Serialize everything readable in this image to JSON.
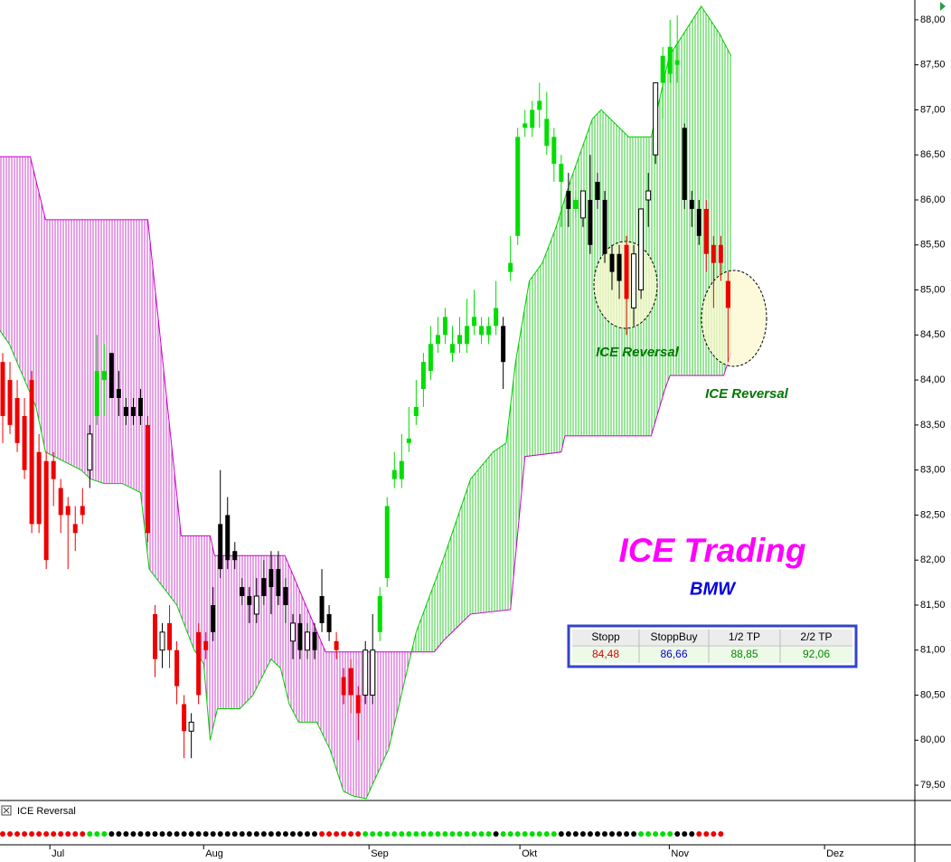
{
  "chart_data": {
    "type": "candlestick",
    "title": "ICE Trading",
    "subtitle": "BMW",
    "annotations": [
      "ICE Reversal",
      "ICE Reversal"
    ],
    "ylim": [
      79.33,
      88.22
    ],
    "yticks": [
      {
        "value": 79.5,
        "label": "79,50"
      },
      {
        "value": 80,
        "label": "80,00"
      },
      {
        "value": 80.5,
        "label": "80,50"
      },
      {
        "value": 81,
        "label": "81,00"
      },
      {
        "value": 81.5,
        "label": "81,50"
      },
      {
        "value": 82,
        "label": "82,00"
      },
      {
        "value": 82.5,
        "label": "82,50"
      },
      {
        "value": 83,
        "label": "83,00"
      },
      {
        "value": 83.5,
        "label": "83,50"
      },
      {
        "value": 84,
        "label": "84,00"
      },
      {
        "value": 84.5,
        "label": "84,50"
      },
      {
        "value": 85,
        "label": "85,00"
      },
      {
        "value": 85.5,
        "label": "85,50"
      },
      {
        "value": 86,
        "label": "86,00"
      },
      {
        "value": 86.5,
        "label": "86,50"
      },
      {
        "value": 87,
        "label": "87,00"
      },
      {
        "value": 87.5,
        "label": "87,50"
      },
      {
        "value": 88,
        "label": "88,00"
      }
    ],
    "xlim": [
      -0.375,
      125.5
    ],
    "xticks": [
      {
        "value": 6.5,
        "label": "Jul"
      },
      {
        "value": 27.7,
        "label": "Aug"
      },
      {
        "value": 50.5,
        "label": "Sep"
      },
      {
        "value": 71.3,
        "label": "Okt"
      },
      {
        "value": 91.9,
        "label": "Nov"
      },
      {
        "value": 113.3,
        "label": "Dez"
      }
    ],
    "palette": {
      "g": "#00dd00",
      "r": "#ee0000",
      "k": "#000000",
      "w": "#ffffff"
    },
    "candle_colors": "rrrrrrrrrrrrwggkkkkkrrwrrrwrrkkkkkkwkkkkwkwkkkrrrrwwgggggggggggggggggkggggggggkgwkkkkkrwwwwgggkkkrrrr",
    "open": [
      84.2,
      84.0,
      83.8,
      83.6,
      84.0,
      83.2,
      83.1,
      83.1,
      82.8,
      82.6,
      82.4,
      82.6,
      83.0,
      83.6,
      84.0,
      84.3,
      83.9,
      83.7,
      83.7,
      83.8,
      83.5,
      81.4,
      81.0,
      81.3,
      81.0,
      80.4,
      80.1,
      81.2,
      81.1,
      81.5,
      82.4,
      82.5,
      82.1,
      81.7,
      81.6,
      81.4,
      81.8,
      81.9,
      81.9,
      81.7,
      81.1,
      81.3,
      81.0,
      81.2,
      81.6,
      81.4,
      81.1,
      80.7,
      80.8,
      80.5,
      80.5,
      80.5,
      81.2,
      81.8,
      82.9,
      82.9,
      83.3,
      83.6,
      83.9,
      84.1,
      84.4,
      84.5,
      84.4,
      84.4,
      84.4,
      84.6,
      84.5,
      84.5,
      84.6,
      84.6,
      85.2,
      85.6,
      86.8,
      86.8,
      87.0,
      86.6,
      86.4,
      86.2,
      86.1,
      86.0,
      85.8,
      86.0,
      86.2,
      86.0,
      85.4,
      85.4,
      85.5,
      84.8,
      85.0,
      86.0,
      86.5,
      87.3,
      87.4,
      87.5,
      86.8,
      86.0,
      85.9,
      85.9,
      85.5,
      85.5,
      85.1
    ],
    "high": [
      84.3,
      84.2,
      84.0,
      83.8,
      84.1,
      83.4,
      83.2,
      83.2,
      82.9,
      82.7,
      82.6,
      82.8,
      83.5,
      84.5,
      84.4,
      84.3,
      84.1,
      83.8,
      83.8,
      83.9,
      83.6,
      81.5,
      81.3,
      81.5,
      81.1,
      80.5,
      80.3,
      81.3,
      81.2,
      81.7,
      83.0,
      82.7,
      82.2,
      81.8,
      81.7,
      81.8,
      82.0,
      82.1,
      82.1,
      81.8,
      81.4,
      81.4,
      81.3,
      81.3,
      81.9,
      81.5,
      81.2,
      80.8,
      80.9,
      80.6,
      81.1,
      81.4,
      81.7,
      82.7,
      83.2,
      83.4,
      83.7,
      84.0,
      84.3,
      84.6,
      84.7,
      84.8,
      84.6,
      84.7,
      84.9,
      85.0,
      84.7,
      84.7,
      85.1,
      84.7,
      85.6,
      86.8,
      87.0,
      87.1,
      87.3,
      87.2,
      86.8,
      86.5,
      86.3,
      86.1,
      86.1,
      86.5,
      86.3,
      86.1,
      85.5,
      85.5,
      85.6,
      85.5,
      85.9,
      86.3,
      87.3,
      87.7,
      88.0,
      88.05,
      86.85,
      86.1,
      86.0,
      86.0,
      85.6,
      85.6,
      85.2
    ],
    "low": [
      83.3,
      83.4,
      83.2,
      82.9,
      82.3,
      82.3,
      81.9,
      82.6,
      82.3,
      81.9,
      82.1,
      82.4,
      82.8,
      83.5,
      83.6,
      83.8,
      83.6,
      83.5,
      83.5,
      83.5,
      82.2,
      80.7,
      80.8,
      80.8,
      80.4,
      79.8,
      79.8,
      80.4,
      80.9,
      81.1,
      81.8,
      81.9,
      81.9,
      81.5,
      81.3,
      81.3,
      81.5,
      81.4,
      81.5,
      81.3,
      80.9,
      80.9,
      80.9,
      80.9,
      81.2,
      81.1,
      80.9,
      80.4,
      80.3,
      80.0,
      80.4,
      80.4,
      81.1,
      81.7,
      82.8,
      82.8,
      83.2,
      83.5,
      83.7,
      84.0,
      84.3,
      84.4,
      84.2,
      84.3,
      84.3,
      84.5,
      84.4,
      84.4,
      84.5,
      83.9,
      85.1,
      85.5,
      86.7,
      86.7,
      86.8,
      86.5,
      86.2,
      85.7,
      85.7,
      85.8,
      85.7,
      85.4,
      85.9,
      85.3,
      85.0,
      84.9,
      84.5,
      84.6,
      84.9,
      85.7,
      86.4,
      86.9,
      87.3,
      87.3,
      85.9,
      85.7,
      85.5,
      85.2,
      84.8,
      85.1,
      84.2
    ],
    "close": [
      83.6,
      83.5,
      83.3,
      83.0,
      82.4,
      82.4,
      82.0,
      82.9,
      82.5,
      82.5,
      82.3,
      82.5,
      83.4,
      84.1,
      84.1,
      83.8,
      83.8,
      83.6,
      83.6,
      83.6,
      82.3,
      80.9,
      81.2,
      81.0,
      80.6,
      80.1,
      80.2,
      80.5,
      81.0,
      81.2,
      81.9,
      82.0,
      82.0,
      81.6,
      81.5,
      81.6,
      81.6,
      81.7,
      81.6,
      81.5,
      81.3,
      81.0,
      81.2,
      81.0,
      81.3,
      81.2,
      81.0,
      80.5,
      80.5,
      80.3,
      81.0,
      81.0,
      81.6,
      82.6,
      83.0,
      83.1,
      83.35,
      83.7,
      84.2,
      84.4,
      84.5,
      84.7,
      84.3,
      84.5,
      84.6,
      84.7,
      84.6,
      84.6,
      84.8,
      84.2,
      85.3,
      86.7,
      86.85,
      87.0,
      87.1,
      86.9,
      86.7,
      86.4,
      85.9,
      85.9,
      86.1,
      85.5,
      86.0,
      85.4,
      85.2,
      85.1,
      84.9,
      85.4,
      85.9,
      86.1,
      87.3,
      87.6,
      87.7,
      87.55,
      86.0,
      85.9,
      85.6,
      85.4,
      85.3,
      85.3,
      84.8
    ],
    "cloud": {
      "span_a": {
        "color": "#00cc00",
        "hatch": "#33cc33",
        "x": [
          -0.4,
          0.9,
          4.6,
          5.9,
          10.8,
          12.1,
          14,
          16.5,
          19,
          20.2,
          22.1,
          24,
          26.4,
          27.7,
          28.6,
          29.6,
          32.7,
          34.5,
          37,
          38.3,
          39.5,
          40.8,
          43.3,
          45.1,
          47,
          48.3,
          50.1,
          53.2,
          55.1,
          57,
          60.7,
          64.5,
          67.6,
          69.4,
          70.7,
          72.6,
          74.4,
          76.3,
          78.2,
          81.3,
          82.5,
          86.3,
          89.4,
          91.9,
          96.3,
          98.8,
          100.4
        ],
        "values": [
          84.55,
          84.4,
          83.7,
          83.2,
          83.0,
          82.9,
          82.85,
          82.85,
          82.75,
          81.9,
          81.7,
          81.5,
          81.0,
          80.85,
          80.0,
          80.35,
          80.35,
          80.5,
          80.9,
          80.8,
          80.4,
          80.2,
          80.2,
          79.9,
          79.43,
          79.38,
          79.35,
          79.9,
          80.55,
          81.2,
          82.0,
          82.9,
          83.2,
          83.3,
          84.2,
          85.1,
          85.3,
          85.7,
          86.2,
          86.9,
          87.0,
          86.7,
          86.7,
          87.6,
          88.15,
          87.85,
          87.6
        ]
      },
      "span_b": {
        "color": "#cc00cc",
        "hatch": "#cc44cc",
        "x": [
          -0.4,
          3.8,
          5.9,
          20,
          24.6,
          28.6,
          29.2,
          38.9,
          44.5,
          59.5,
          60.7,
          64.5,
          70,
          72,
          77,
          77.5,
          89.4,
          91.3,
          92,
          99.4,
          100.4
        ],
        "values": [
          86.48,
          86.48,
          85.78,
          85.78,
          82.27,
          82.27,
          82.05,
          82.05,
          80.98,
          80.98,
          81.1,
          81.4,
          81.45,
          83.15,
          83.2,
          83.38,
          83.38,
          83.9,
          84.05,
          84.05,
          84.3
        ]
      }
    },
    "indicator": {
      "name": "ICE Reversal",
      "colors": "rrrrrrrrrrrrgggkkkkkkkkkkkkkkkkkkkkkkkkkkkkkrrrrrrggggggggggggggggggkggggggggkkkkkkkkkkkgggggkkkrrrr"
    },
    "table": {
      "headers": [
        "Stopp",
        "StoppBuy",
        "1/2 TP",
        "2/2 TP"
      ],
      "values": [
        {
          "value": 84.48,
          "label": "84,48"
        },
        {
          "value": 86.66,
          "label": "86,66"
        },
        {
          "value": 88.85,
          "label": "88,85"
        },
        {
          "value": 92.06,
          "label": "92,06"
        }
      ],
      "colors": [
        "#dd0000",
        "#0000cc",
        "#008800",
        "#008800"
      ]
    }
  }
}
